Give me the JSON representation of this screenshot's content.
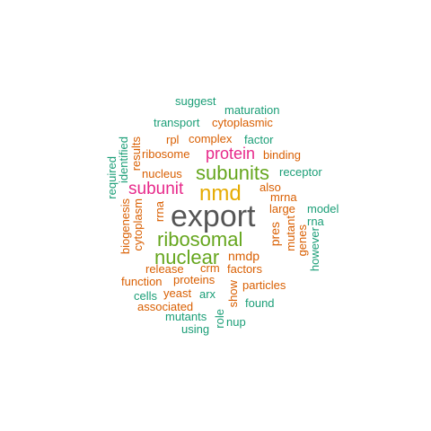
{
  "colors": {
    "teal": "#1b9e77",
    "orange": "#d95f02",
    "magenta": "#e7298a",
    "green": "#66a61e",
    "gold": "#e6ab02",
    "gray": "#555555"
  },
  "words": [
    {
      "text": "export",
      "color": "gray"
    },
    {
      "text": "nmd",
      "color": "gold"
    },
    {
      "text": "ribosomal",
      "color": "green"
    },
    {
      "text": "nuclear",
      "color": "green"
    },
    {
      "text": "subunits",
      "color": "green"
    },
    {
      "text": "subunit",
      "color": "magenta"
    },
    {
      "text": "protein",
      "color": "magenta"
    },
    {
      "text": "suggest",
      "color": "teal"
    },
    {
      "text": "maturation",
      "color": "teal"
    },
    {
      "text": "transport",
      "color": "teal"
    },
    {
      "text": "cytoplasmic",
      "color": "orange"
    },
    {
      "text": "rpl",
      "color": "orange"
    },
    {
      "text": "complex",
      "color": "orange"
    },
    {
      "text": "factor",
      "color": "teal"
    },
    {
      "text": "ribosome",
      "color": "orange"
    },
    {
      "text": "binding",
      "color": "orange"
    },
    {
      "text": "nucleus",
      "color": "orange"
    },
    {
      "text": "receptor",
      "color": "teal"
    },
    {
      "text": "also",
      "color": "orange"
    },
    {
      "text": "mrna",
      "color": "orange"
    },
    {
      "text": "model",
      "color": "teal"
    },
    {
      "text": "large",
      "color": "orange"
    },
    {
      "text": "rna",
      "color": "teal"
    },
    {
      "text": "nmdp",
      "color": "orange"
    },
    {
      "text": "release",
      "color": "orange"
    },
    {
      "text": "crm",
      "color": "orange"
    },
    {
      "text": "factors",
      "color": "orange"
    },
    {
      "text": "function",
      "color": "orange"
    },
    {
      "text": "proteins",
      "color": "orange"
    },
    {
      "text": "particles",
      "color": "orange"
    },
    {
      "text": "cells",
      "color": "teal"
    },
    {
      "text": "yeast",
      "color": "orange"
    },
    {
      "text": "arx",
      "color": "teal"
    },
    {
      "text": "associated",
      "color": "orange"
    },
    {
      "text": "found",
      "color": "teal"
    },
    {
      "text": "mutants",
      "color": "teal"
    },
    {
      "text": "nup",
      "color": "teal"
    },
    {
      "text": "using",
      "color": "teal"
    },
    {
      "text": "required",
      "color": "teal"
    },
    {
      "text": "identified",
      "color": "teal"
    },
    {
      "text": "results",
      "color": "orange"
    },
    {
      "text": "biogenesis",
      "color": "orange"
    },
    {
      "text": "cytoplasm",
      "color": "orange"
    },
    {
      "text": "rrna",
      "color": "orange"
    },
    {
      "text": "pres",
      "color": "orange"
    },
    {
      "text": "mutant",
      "color": "orange"
    },
    {
      "text": "genes",
      "color": "orange"
    },
    {
      "text": "however",
      "color": "teal"
    },
    {
      "text": "show",
      "color": "orange"
    },
    {
      "text": "role",
      "color": "teal"
    }
  ]
}
